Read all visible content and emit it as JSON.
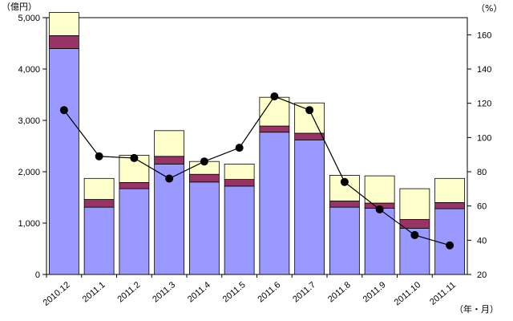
{
  "chart_data": {
    "type": "bar",
    "stacked": true,
    "left_unit": "（億円）",
    "right_unit": "（%）",
    "x_unit": "（年・月）",
    "categories": [
      "2010.12",
      "2011.1",
      "2011.2",
      "2011.3",
      "2011.4",
      "2011.5",
      "2011.6",
      "2011.7",
      "2011.8",
      "2011.9",
      "2011.10",
      "2011.11"
    ],
    "y_left": {
      "lim": [
        0,
        5000
      ],
      "ticks": [
        "0",
        "1,000",
        "2,000",
        "3,000",
        "4,000",
        "5,000"
      ],
      "tick_values": [
        0,
        1000,
        2000,
        3000,
        4000,
        5000
      ]
    },
    "y_right": {
      "lim": [
        20,
        170
      ],
      "ticks": [
        "20",
        "40",
        "60",
        "80",
        "100",
        "120",
        "140",
        "160"
      ],
      "tick_values": [
        20,
        40,
        60,
        80,
        100,
        120,
        140,
        160
      ]
    },
    "series": [
      {
        "values": [
          4400,
          1310,
          1670,
          2150,
          1800,
          1720,
          2770,
          2620,
          1310,
          1290,
          900,
          1280
        ],
        "color": "#9999ff",
        "axis": "left"
      },
      {
        "values": [
          250,
          150,
          120,
          150,
          150,
          130,
          120,
          130,
          120,
          100,
          170,
          120
        ],
        "color": "#993366",
        "axis": "left"
      },
      {
        "values": [
          450,
          410,
          530,
          500,
          250,
          300,
          560,
          590,
          500,
          530,
          600,
          470
        ],
        "color": "#ffffcc",
        "axis": "left"
      },
      {
        "values": [
          116,
          89,
          88,
          76,
          86,
          94,
          124,
          116,
          74,
          58,
          43,
          37
        ],
        "type": "line",
        "color": "#000000",
        "axis": "right"
      }
    ],
    "grid": false,
    "legend": "none"
  }
}
